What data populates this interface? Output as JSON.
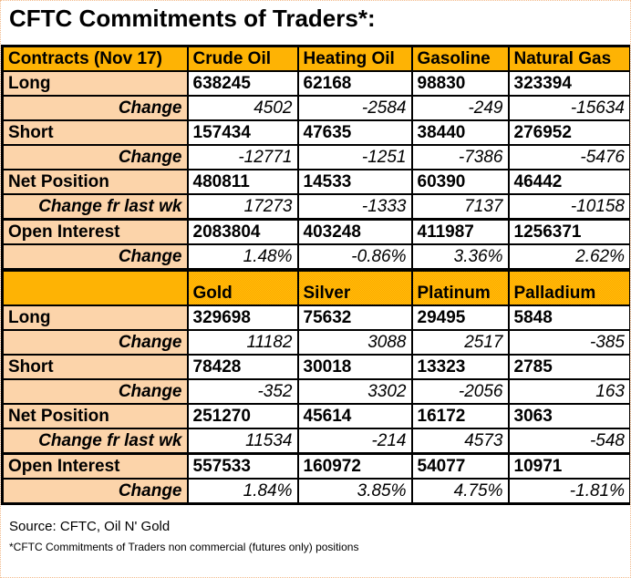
{
  "title": "CFTC Commitments of Traders*:",
  "chart_data": {
    "type": "table",
    "title": "CFTC Commitments of Traders*:",
    "sections": [
      {
        "header_row": [
          "Contracts (Nov 17)",
          "Crude Oil",
          "Heating Oil",
          "Gasoline",
          "Natural Gas"
        ],
        "rows": [
          {
            "label": "Long",
            "style": "value",
            "values": [
              "638245",
              "62168",
              "98830",
              "323394"
            ]
          },
          {
            "label": "Change",
            "style": "change",
            "values": [
              "4502",
              "-2584",
              "-249",
              "-15634"
            ]
          },
          {
            "label": "Short",
            "style": "value",
            "values": [
              "157434",
              "47635",
              "38440",
              "276952"
            ]
          },
          {
            "label": "Change",
            "style": "change",
            "values": [
              "-12771",
              "-1251",
              "-7386",
              "-5476"
            ]
          },
          {
            "label": "Net Position",
            "style": "net",
            "values": [
              "480811",
              "14533",
              "60390",
              "46442"
            ]
          },
          {
            "label": "Change fr last wk",
            "style": "change",
            "values": [
              "17273",
              "-1333",
              "7137",
              "-10158"
            ]
          },
          {
            "label": "Open Interest",
            "style": "value",
            "separator_above": true,
            "values": [
              "2083804",
              "403248",
              "411987",
              "1256371"
            ]
          },
          {
            "label": "Change",
            "style": "change",
            "values": [
              "1.48%",
              "-0.86%",
              "3.36%",
              "2.62%"
            ]
          }
        ]
      },
      {
        "header_row": [
          "",
          "Gold",
          "Silver",
          "Platinum",
          "Palladium"
        ],
        "rows": [
          {
            "label": "Long",
            "style": "value",
            "values": [
              "329698",
              "75632",
              "29495",
              "5848"
            ]
          },
          {
            "label": "Change",
            "style": "change",
            "values": [
              "11182",
              "3088",
              "2517",
              "-385"
            ]
          },
          {
            "label": "Short",
            "style": "value",
            "values": [
              "78428",
              "30018",
              "13323",
              "2785"
            ]
          },
          {
            "label": "Change",
            "style": "change",
            "values": [
              "-352",
              "3302",
              "-2056",
              "163"
            ]
          },
          {
            "label": "Net Position",
            "style": "net",
            "values": [
              "251270",
              "45614",
              "16172",
              "3063"
            ]
          },
          {
            "label": "Change fr last wk",
            "style": "change",
            "values": [
              "11534",
              "-214",
              "4573",
              "-548"
            ]
          },
          {
            "label": "Open Interest",
            "style": "value",
            "separator_above": true,
            "values": [
              "557533",
              "160972",
              "54077",
              "10971"
            ]
          },
          {
            "label": "Change",
            "style": "change",
            "values": [
              "1.84%",
              "3.85%",
              "4.75%",
              "-1.81%"
            ]
          }
        ]
      }
    ],
    "layout": {
      "legend": "none",
      "grid": "black cell borders",
      "first_column_role": "row labels",
      "net_position_text_color": "#089636"
    }
  },
  "footer": {
    "source": "Source: CFTC, Oil N' Gold",
    "footnote": "*CFTC Commitments of Traders non commercial (futures only) positions"
  },
  "colors": {
    "header_gold": "#ffb406",
    "label_peach": "#fbd2a6",
    "net_green": "#089636",
    "border": "#000000",
    "page_border_dotted": "#f2b98a"
  }
}
